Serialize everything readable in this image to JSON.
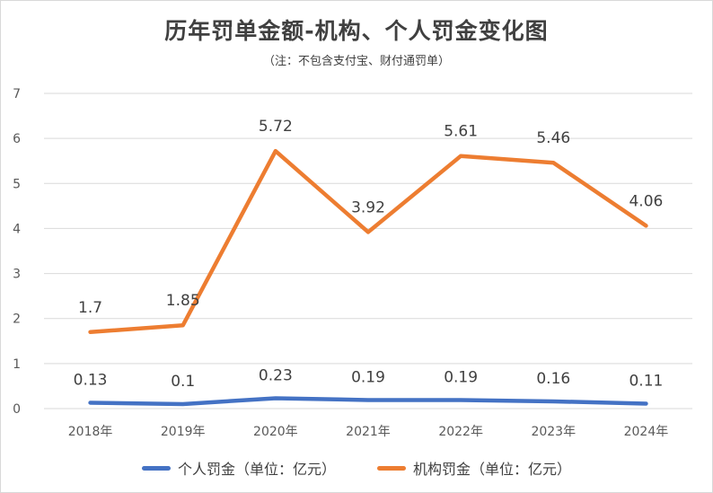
{
  "chart_data": {
    "type": "line",
    "title": "历年罚单金额-机构、个人罚金变化图",
    "subtitle": "（注：不包含支付宝、财付通罚单）",
    "categories": [
      "2018年",
      "2019年",
      "2020年",
      "2021年",
      "2022年",
      "2023年",
      "2024年"
    ],
    "series": [
      {
        "name": "个人罚金（单位：亿元）",
        "color": "#4472c4",
        "values": [
          0.13,
          0.1,
          0.23,
          0.19,
          0.19,
          0.16,
          0.11
        ]
      },
      {
        "name": "机构罚金（单位：亿元）",
        "color": "#ed7d31",
        "values": [
          1.7,
          1.85,
          5.72,
          3.92,
          5.61,
          5.46,
          4.06
        ]
      }
    ],
    "ylim": [
      0,
      7
    ],
    "yticks": [
      "0",
      "1",
      "2",
      "3",
      "4",
      "5",
      "6",
      "7"
    ],
    "grid": true,
    "legend": "bottom"
  }
}
